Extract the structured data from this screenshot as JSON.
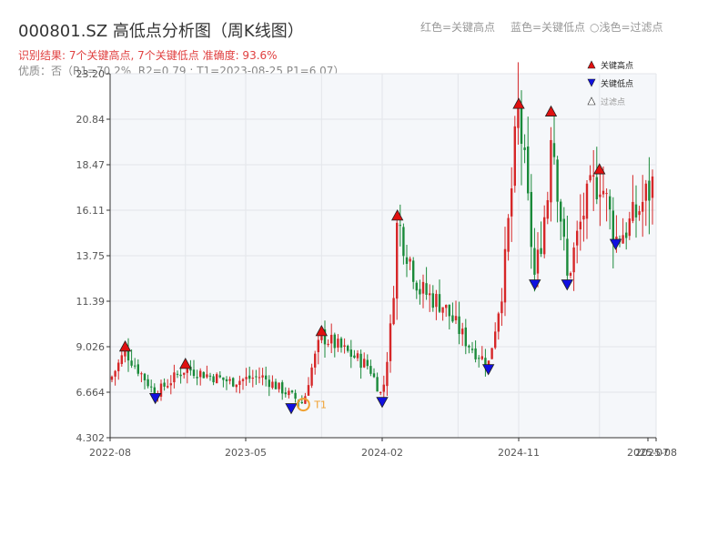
{
  "page": {
    "title": "000801.SZ 高低点分析图（周K线图）",
    "legend_red": "红色=关键高点",
    "legend_blue": "蓝色=关键低点",
    "legend_light": "○浅色=过滤点",
    "subtitle1": "识别结果: 7个关键高点, 7个关键低点  准确度: 93.6%",
    "subtitle2": "优质：否（R1=70.2%, R2=0.79 ; T1=2023-08-25 P1=6.07）"
  },
  "chart_data": {
    "type": "candlestick",
    "ylim": [
      4.302,
      23.2
    ],
    "y_ticks": [
      "4.302",
      "6.664",
      "9.026",
      "11.39",
      "13.75",
      "16.11",
      "18.47",
      "20.84",
      "23.20"
    ],
    "x_ticks": [
      "2022-08",
      "2023-05",
      "2024-02",
      "2024-11",
      "2025-07",
      "2025-08"
    ],
    "legend": {
      "high": "关键高点",
      "low": "关键低点",
      "filtered": "过滤点"
    },
    "annotation": {
      "label": "T1",
      "date": "2023-08-25",
      "value": 6.07
    },
    "key_highs": [
      {
        "date": "2022-09",
        "value": 8.8
      },
      {
        "date": "2023-01",
        "value": 7.9
      },
      {
        "date": "2023-10",
        "value": 9.6
      },
      {
        "date": "2024-03",
        "value": 15.6
      },
      {
        "date": "2024-11",
        "value": 21.4
      },
      {
        "date": "2025-01",
        "value": 21.0
      },
      {
        "date": "2025-04",
        "value": 18.0
      }
    ],
    "key_lows": [
      {
        "date": "2022-11",
        "value": 6.6
      },
      {
        "date": "2023-08",
        "value": 6.07
      },
      {
        "date": "2024-02",
        "value": 6.4
      },
      {
        "date": "2024-09",
        "value": 8.1
      },
      {
        "date": "2024-12",
        "value": 12.5
      },
      {
        "date": "2025-02",
        "value": 12.5
      },
      {
        "date": "2025-05",
        "value": 14.6
      }
    ],
    "colors": {
      "up": "#d62728",
      "down": "#1a8a3a",
      "high_marker": "#e01010",
      "low_marker": "#1010e0",
      "annotation": "#f0a030",
      "plot_bg": "#f5f7fa",
      "grid": "#e3e6ea"
    }
  }
}
